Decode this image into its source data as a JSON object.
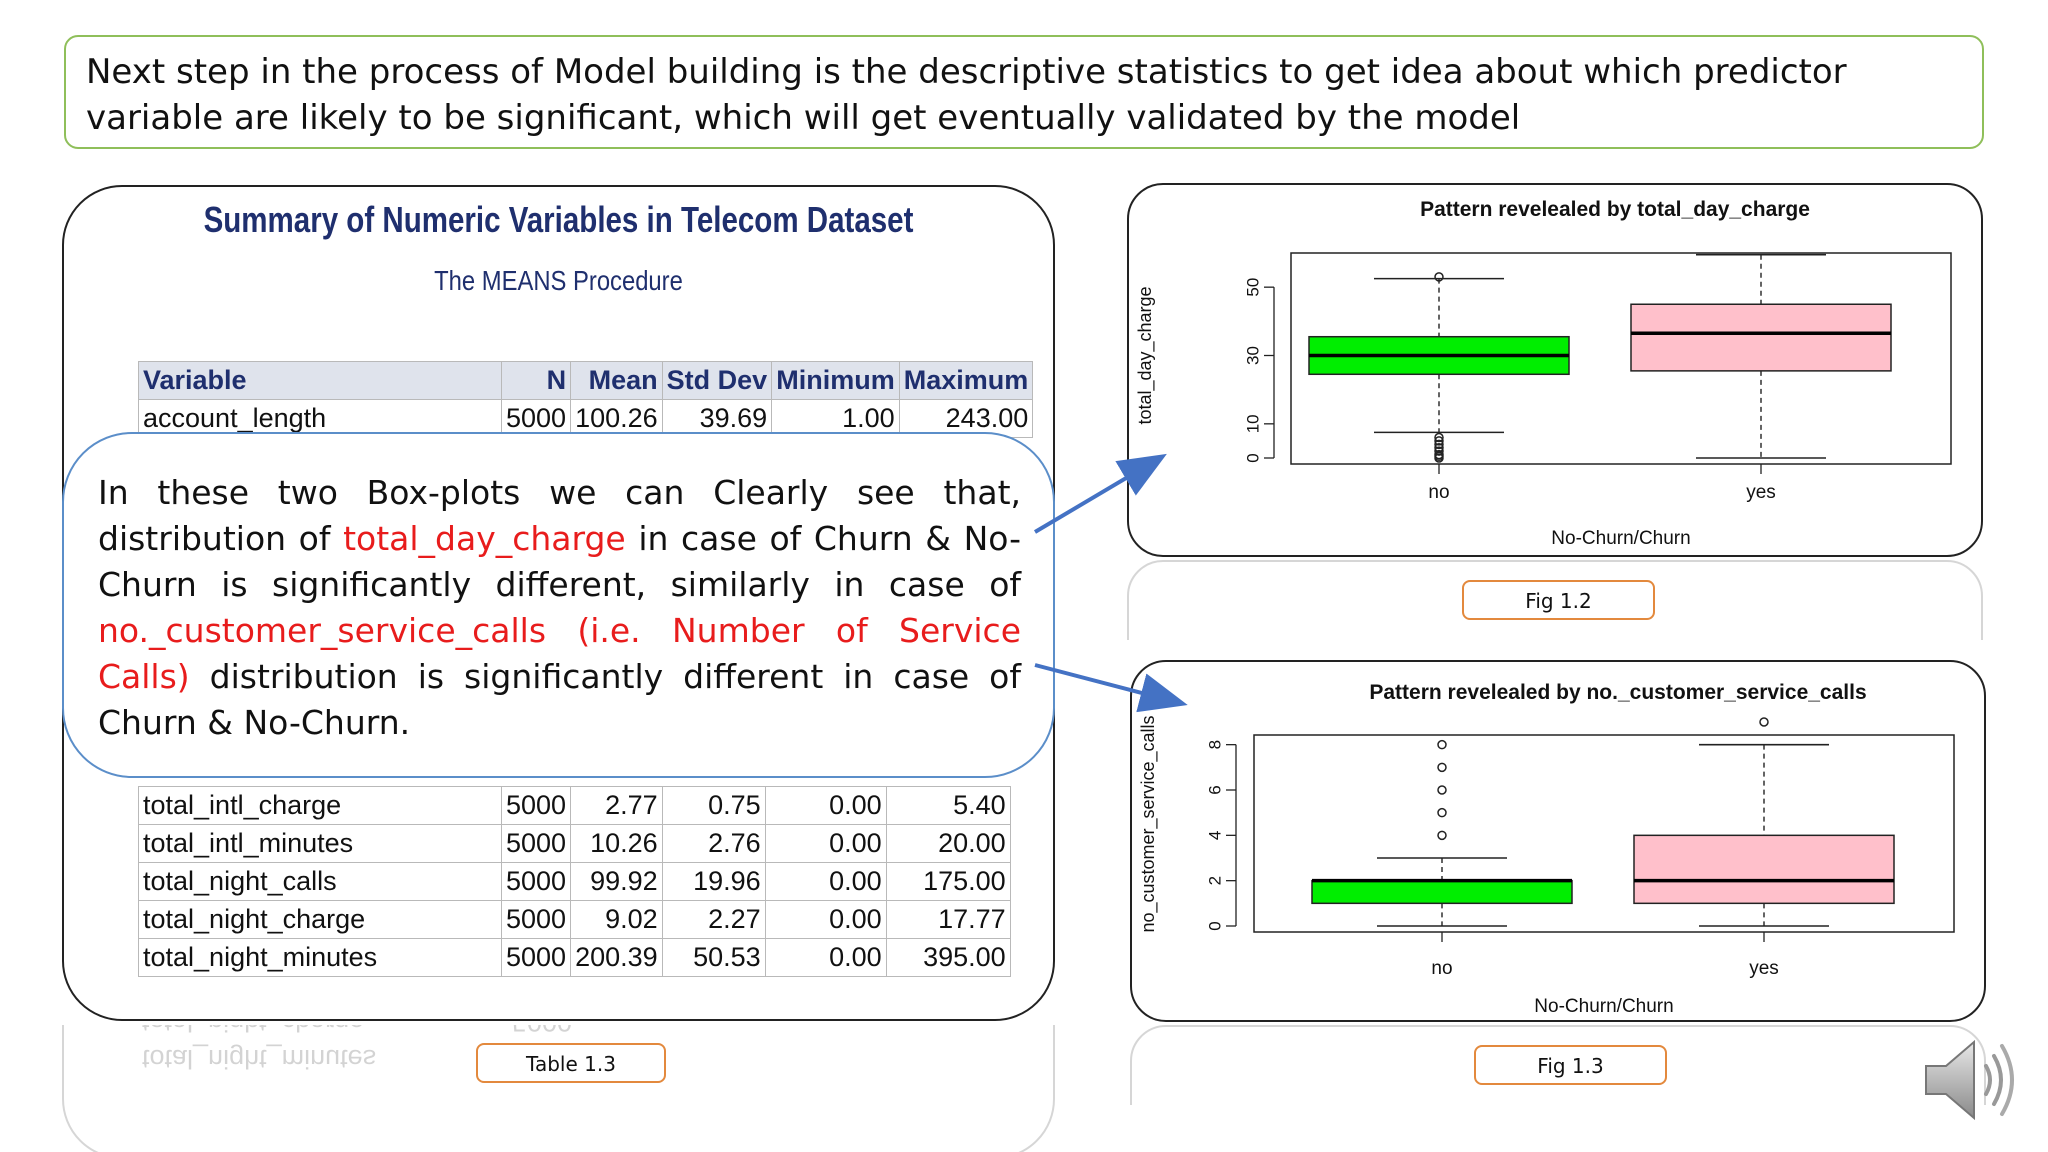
{
  "banner": {
    "text": "Next step in the process of Model building is the descriptive statistics to get  idea about which predictor variable are likely to be significant, which will get eventually validated by the model"
  },
  "table_panel": {
    "title": "Summary of Numeric Variables in Telecom Dataset",
    "subtitle": "The MEANS Procedure",
    "headers": [
      "Variable",
      "N",
      "Mean",
      "Std Dev",
      "Minimum",
      "Maximum"
    ],
    "top_rows": [
      [
        "account_length",
        "5000",
        "100.26",
        "39.69",
        "1.00",
        "243.00"
      ]
    ],
    "bottom_rows": [
      [
        "total_intl_charge",
        "5000",
        "2.77",
        "0.75",
        "0.00",
        "5.40"
      ],
      [
        "total_intl_minutes",
        "5000",
        "10.26",
        "2.76",
        "0.00",
        "20.00"
      ],
      [
        "total_night_calls",
        "5000",
        "99.92",
        "19.96",
        "0.00",
        "175.00"
      ],
      [
        "total_night_charge",
        "5000",
        "9.02",
        "2.27",
        "0.00",
        "17.77"
      ],
      [
        "total_night_minutes",
        "5000",
        "200.39",
        "50.53",
        "0.00",
        "395.00"
      ]
    ],
    "caption": "Table 1.3"
  },
  "callout": {
    "part1": "In these two Box-plots we can Clearly see that, distribution of ",
    "highlight1": "total_day_charge",
    "part2": " in case of Churn & No-Churn is significantly different, similarly in case of ",
    "highlight2": "no._customer_service_calls (i.e. Number of Service Calls)",
    "part3": " distribution is significantly different in case of Churn & No-Churn."
  },
  "chart_data": [
    {
      "type": "boxplot",
      "title": "Pattern revelealed by total_day_charge",
      "xlabel": "No-Churn/Churn",
      "ylabel": "total_day_charge",
      "categories": [
        "no",
        "yes"
      ],
      "yticks": [
        0,
        10,
        30,
        50
      ],
      "ylim": [
        0,
        60
      ],
      "boxes": [
        {
          "category": "no",
          "color": "#00ee00",
          "min": 7.5,
          "q1": 24.5,
          "median": 30.0,
          "q3": 35.5,
          "max": 52.5,
          "outliers": [
            0,
            0.5,
            1.0,
            2.0,
            3.0,
            4.0,
            5.0,
            6.0,
            53.0
          ]
        },
        {
          "category": "yes",
          "color": "#ffc0cb",
          "min": 0,
          "q1": 25.5,
          "median": 36.5,
          "q3": 45.0,
          "max": 59.5,
          "outliers": []
        }
      ],
      "caption": "Fig 1.2"
    },
    {
      "type": "boxplot",
      "title": "Pattern revelealed by no._customer_service_calls",
      "xlabel": "No-Churn/Churn",
      "ylabel": "no_customer_service_calls",
      "categories": [
        "no",
        "yes"
      ],
      "yticks": [
        0,
        2,
        4,
        6,
        8
      ],
      "ylim": [
        0,
        9
      ],
      "boxes": [
        {
          "category": "no",
          "color": "#00ee00",
          "min": 0,
          "q1": 1,
          "median": 2,
          "q3": 2,
          "max": 3,
          "outliers": [
            4,
            5,
            6,
            7,
            8
          ]
        },
        {
          "category": "yes",
          "color": "#ffc0cb",
          "min": 0,
          "q1": 1,
          "median": 2,
          "q3": 4,
          "max": 8,
          "outliers": [
            9
          ]
        }
      ],
      "caption": "Fig 1.3"
    }
  ],
  "colors": {
    "banner_border": "#8fbf5a",
    "callout_border": "#5b8ec9",
    "caption_border": "#e3893d",
    "highlight": "#e81c1c",
    "sas_title": "#1f2f6e",
    "arrow": "#4472c4"
  },
  "icons": {
    "speaker": "speaker-icon"
  }
}
